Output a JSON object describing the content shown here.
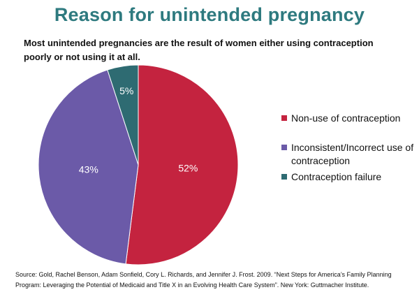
{
  "title": "Reason for unintended pregnancy",
  "subtitle": "Most unintended pregnancies are the result of women either using contraception poorly or not using it at all.",
  "chart_data": {
    "type": "pie",
    "title": "",
    "categories": [
      "Non-use of contraception",
      "Inconsistent/Incorrect use of contraception",
      "Contraception failure"
    ],
    "values": [
      52,
      43,
      5
    ],
    "value_labels": [
      "52%",
      "43%",
      "5%"
    ],
    "colors": [
      "#c4233f",
      "#6b5aa8",
      "#2e6b72"
    ],
    "legend_position": "right",
    "start_angle": "top, clockwise"
  },
  "source": "Source: Gold, Rachel Benson, Adam Sonfield, Cory L. Richards, and Jennifer J. Frost. 2009. “Next Steps for America’s Family Planning Program: Leveraging the Potential of Medicaid and Title X in an Evolving Health Care System”. New York: Guttmacher Institute."
}
